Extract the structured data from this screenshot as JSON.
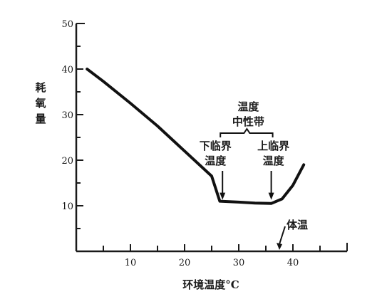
{
  "chart_data": {
    "type": "line",
    "xlabel": "环境温度°C",
    "ylabel": "耗氧量",
    "xlim": [
      0,
      50
    ],
    "ylim": [
      0,
      50
    ],
    "x_ticks": [
      10,
      20,
      30,
      40
    ],
    "y_ticks": [
      10,
      20,
      30,
      40,
      50
    ],
    "grid": false,
    "series": [
      {
        "x": [
          2,
          5,
          10,
          15,
          20,
          25,
          26.5,
          30,
          33,
          36,
          38,
          40,
          42
        ],
        "y": [
          40,
          37.3,
          32.5,
          27.5,
          22.0,
          16.5,
          11.0,
          10.8,
          10.6,
          10.5,
          11.5,
          14.5,
          19.0
        ]
      }
    ],
    "annotations": {
      "zone_line1": "温度",
      "zone_line2": "中性带",
      "lower_line1": "下临界",
      "lower_line2": "温度",
      "upper_line1": "上临界",
      "upper_line2": "温度",
      "body_temp": "体温"
    },
    "marker_x": {
      "lower_critical": 27,
      "upper_critical": 36,
      "body_temp": 37.5
    }
  }
}
